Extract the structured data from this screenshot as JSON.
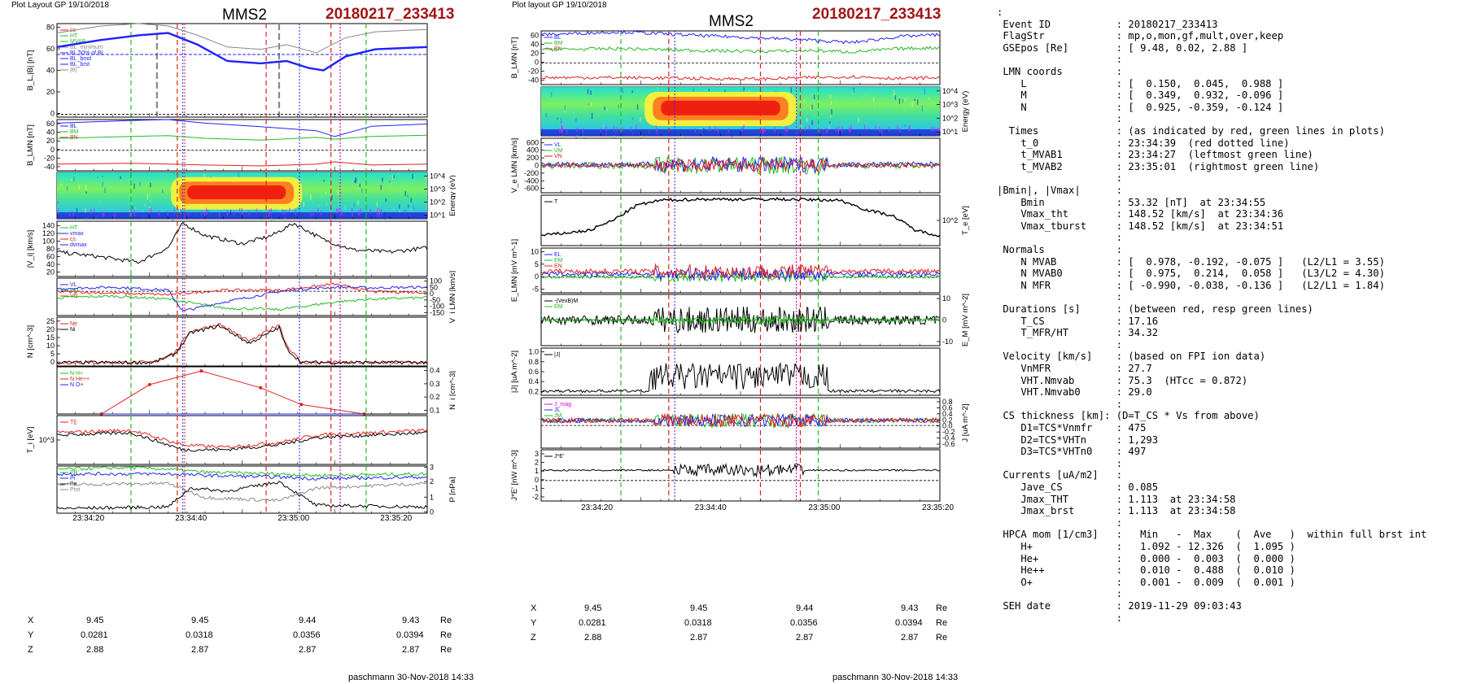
{
  "left_panel": {
    "header": "Plot Layout GP 19/10/2018",
    "spacecraft": "MMS2",
    "event": "20180217_233413",
    "footer": "paschmann 30-Nov-2018 14:33"
  },
  "right_panel": {
    "header": "Plot layout GP 19/10/2018",
    "spacecraft": "MMS2",
    "event": "20180217_233413",
    "footer": "paschmann 30-Nov-2018 14:33"
  },
  "time_ticks": [
    "23:34:20",
    "23:34:40",
    "23:35:00",
    "23:35:20"
  ],
  "position_rows": [
    {
      "label": "X",
      "values": [
        "9.45",
        "9.45",
        "9.44",
        "9.43"
      ],
      "unit": "Re"
    },
    {
      "label": "Y",
      "values": [
        "0.0281",
        "0.0318",
        "0.0356",
        "0.0394"
      ],
      "unit": "Re"
    },
    {
      "label": "Z",
      "values": [
        "2.88",
        "2.87",
        "2.87",
        "2.87"
      ],
      "unit": "Re"
    }
  ],
  "colors": {
    "blue": "#2020ff",
    "green": "#22bb22",
    "red": "#e02020",
    "black": "#000000",
    "magenta": "#e000e0",
    "title_red": "#a31515"
  },
  "chart_data": [
    {
      "type": "line",
      "panel": "left-1",
      "ylabel": "B_L,|B| [nT]",
      "yticks": [
        "80",
        "60",
        "40",
        "20",
        "0"
      ],
      "ylim": [
        0,
        80
      ],
      "legend": [
        "cs",
        "HT",
        "MVAB",
        "BL_minimum",
        "BL 50% of BL",
        "BL_bmd",
        "BL_brst",
        "|B|"
      ],
      "series": [
        {
          "name": "|B|",
          "color": "#888888",
          "x": [
            0,
            12,
            22,
            30,
            38,
            46,
            55,
            62,
            70,
            78,
            86,
            100
          ],
          "y": [
            72,
            78,
            80,
            78,
            70,
            60,
            58,
            62,
            55,
            68,
            73,
            75
          ]
        },
        {
          "name": "BL_brst",
          "color": "#2020ff",
          "x": [
            0,
            12,
            22,
            30,
            38,
            46,
            55,
            62,
            68,
            72,
            78,
            86,
            100
          ],
          "y": [
            60,
            66,
            70,
            72,
            62,
            48,
            46,
            48,
            42,
            40,
            52,
            58,
            60
          ]
        }
      ]
    },
    {
      "type": "line",
      "panel": "left-2",
      "ylabel": "B_LMN [nT]",
      "yticks": [
        "60",
        "40",
        "20",
        "0",
        "-20",
        "-40"
      ],
      "ylim": [
        -45,
        70
      ],
      "legend": [
        "BL",
        "BM",
        "BN"
      ],
      "series": [
        {
          "name": "BL",
          "color": "#2020ff",
          "x": [
            0,
            20,
            30,
            40,
            55,
            70,
            75,
            85,
            100
          ],
          "y": [
            62,
            68,
            70,
            62,
            54,
            45,
            32,
            55,
            60
          ]
        },
        {
          "name": "BM",
          "color": "#22bb22",
          "x": [
            0,
            20,
            30,
            40,
            55,
            70,
            75,
            85,
            100
          ],
          "y": [
            28,
            32,
            34,
            28,
            24,
            30,
            26,
            32,
            35
          ]
        },
        {
          "name": "BN",
          "color": "#e02020",
          "x": [
            0,
            20,
            30,
            40,
            55,
            70,
            75,
            85,
            100
          ],
          "y": [
            -30,
            -28,
            -30,
            -32,
            -34,
            -30,
            -25,
            -32,
            -30
          ]
        }
      ]
    },
    {
      "type": "heatmap",
      "panel": "left-3",
      "ylabel": "Energy (eV)",
      "yticks": [
        "10^4",
        "10^3",
        "10^2",
        "10^1"
      ]
    },
    {
      "type": "line",
      "panel": "left-4",
      "ylabel": "|V_i| [km/s]",
      "yticks": [
        "140",
        "120",
        "100",
        "80",
        "60",
        "40",
        "20"
      ],
      "ylim": [
        10,
        145
      ],
      "legend": [
        "HT",
        "vmax",
        "cs",
        "dvmax"
      ],
      "series": [
        {
          "name": "|Vi|",
          "color": "#000000",
          "x": [
            0,
            10,
            22,
            30,
            34,
            40,
            50,
            58,
            64,
            72,
            80,
            90,
            100
          ],
          "y": [
            70,
            60,
            45,
            80,
            140,
            110,
            90,
            110,
            140,
            100,
            75,
            70,
            80
          ]
        }
      ]
    },
    {
      "type": "line",
      "panel": "left-5",
      "ylabel": "V_i LMN [km/s]",
      "yticks": [
        "100",
        "50",
        "0",
        "-50",
        "-100",
        "-150"
      ],
      "ylim": [
        -150,
        100
      ],
      "legend": [
        "VL",
        "VM",
        "VN"
      ],
      "series": [
        {
          "name": "VL",
          "color": "#2020ff",
          "x": [
            0,
            15,
            30,
            34,
            45,
            60,
            68,
            76,
            85,
            100
          ],
          "y": [
            30,
            40,
            20,
            -120,
            -60,
            10,
            30,
            40,
            35,
            40
          ]
        },
        {
          "name": "VM",
          "color": "#22bb22",
          "x": [
            0,
            15,
            30,
            45,
            60,
            75,
            85,
            100
          ],
          "y": [
            -30,
            -20,
            -40,
            -100,
            -110,
            -60,
            -40,
            -30
          ]
        },
        {
          "name": "VN",
          "color": "#e02020",
          "x": [
            0,
            15,
            30,
            45,
            60,
            75,
            85,
            100
          ],
          "y": [
            10,
            0,
            -10,
            20,
            20,
            60,
            10,
            5
          ]
        }
      ]
    },
    {
      "type": "line",
      "panel": "left-6",
      "ylabel": "N [cm^-3]",
      "yticks": [
        "25",
        "20",
        "15",
        "10",
        "5",
        "0"
      ],
      "ylim": [
        0,
        28
      ],
      "legend": [
        "Ne",
        "Ni"
      ],
      "series": [
        {
          "name": "Ne",
          "color": "#e02020",
          "x": [
            0,
            26,
            32,
            36,
            44,
            52,
            60,
            62,
            66,
            100
          ],
          "y": [
            2,
            2,
            8,
            20,
            24,
            14,
            24,
            12,
            2,
            2
          ]
        },
        {
          "name": "Ni",
          "color": "#000000",
          "x": [
            0,
            26,
            32,
            36,
            44,
            52,
            60,
            62,
            66,
            100
          ],
          "y": [
            2,
            2,
            7,
            19,
            23,
            13,
            22,
            10,
            2,
            2
          ]
        }
      ]
    },
    {
      "type": "line",
      "panel": "left-7",
      "ylabel": "N_i [cm^-3]",
      "yticks": [
        "0.4",
        "0.3",
        "0.2",
        "0.1"
      ],
      "ylim": [
        0,
        0.45
      ],
      "legend": [
        "N H+",
        "N He++",
        "N O+"
      ],
      "series": [
        {
          "name": "N He++",
          "color": "#e02020",
          "x": [
            12,
            25,
            39,
            55,
            66,
            83
          ],
          "y": [
            0.0,
            0.28,
            0.41,
            0.25,
            0.09,
            0.0
          ]
        },
        {
          "name": "N H+",
          "color": "#000000",
          "x": [
            12,
            83
          ],
          "y": [
            0.0,
            0.0
          ]
        },
        {
          "name": "N O+",
          "color": "#2020ff",
          "x": [
            12,
            83
          ],
          "y": [
            0.0,
            0.0
          ]
        }
      ]
    },
    {
      "type": "line",
      "panel": "left-8",
      "ylabel": "T_i [eV]",
      "yticks": [
        "10^3"
      ],
      "legend": [
        "T||"
      ],
      "series": [
        {
          "name": "T||",
          "color": "#e02020",
          "x": [
            0,
            20,
            34,
            45,
            60,
            70,
            85,
            100
          ],
          "y": [
            0.65,
            0.7,
            0.4,
            0.35,
            0.45,
            0.6,
            0.65,
            0.7
          ]
        },
        {
          "name": "Tperp",
          "color": "#000000",
          "x": [
            0,
            20,
            34,
            45,
            60,
            70,
            85,
            100
          ],
          "y": [
            0.6,
            0.65,
            0.3,
            0.3,
            0.4,
            0.55,
            0.6,
            0.65
          ]
        }
      ]
    },
    {
      "type": "line",
      "panel": "left-9",
      "ylabel": "P [nPa]",
      "yticks": [
        "3",
        "2",
        "1",
        "0"
      ],
      "ylim": [
        0,
        3
      ],
      "legend": [
        "PB",
        "Pi",
        "Pe",
        "Ptot"
      ],
      "series": [
        {
          "name": "Ptot",
          "color": "#22bb22",
          "x": [
            0,
            20,
            30,
            40,
            60,
            70,
            100
          ],
          "y": [
            2.8,
            2.9,
            2.8,
            2.6,
            2.5,
            2.4,
            2.5
          ]
        },
        {
          "name": "PB",
          "color": "#2020ff",
          "x": [
            0,
            30,
            40,
            60,
            70,
            100
          ],
          "y": [
            2.5,
            2.5,
            2.4,
            2.3,
            2.2,
            2.3
          ]
        },
        {
          "name": "Pi",
          "color": "#000000",
          "x": [
            0,
            30,
            36,
            46,
            60,
            70,
            100
          ],
          "y": [
            0.3,
            0.4,
            1.6,
            1.4,
            2.0,
            0.5,
            0.4
          ]
        },
        {
          "name": "Pe",
          "color": "#888888",
          "x": [
            0,
            30,
            40,
            60,
            70,
            100
          ],
          "y": [
            1.8,
            1.9,
            1.0,
            0.8,
            1.6,
            1.9
          ]
        }
      ]
    },
    {
      "type": "line",
      "panel": "right-1",
      "ylabel": "B_LMN [nT]",
      "yticks": [
        "60",
        "40",
        "20",
        "0",
        "-20",
        "-40"
      ],
      "ylim": [
        -45,
        70
      ],
      "legend": [
        "BL",
        "BM",
        "BN"
      ],
      "series": [
        {
          "name": "BL",
          "color": "#2020ff",
          "x": [
            0,
            20,
            40,
            55,
            68,
            78,
            90,
            100
          ],
          "y": [
            62,
            68,
            60,
            55,
            50,
            45,
            58,
            62
          ]
        },
        {
          "name": "BM",
          "color": "#22bb22",
          "x": [
            0,
            20,
            40,
            55,
            68,
            78,
            90,
            100
          ],
          "y": [
            30,
            32,
            28,
            26,
            28,
            25,
            32,
            34
          ]
        },
        {
          "name": "BN",
          "color": "#e02020",
          "x": [
            0,
            20,
            40,
            55,
            68,
            78,
            90,
            100
          ],
          "y": [
            -30,
            -30,
            -32,
            -33,
            -30,
            -28,
            -32,
            -30
          ]
        }
      ]
    },
    {
      "type": "heatmap",
      "panel": "right-2",
      "ylabel": "Energy (eV)",
      "yticks": [
        "10^4",
        "10^3",
        "10^2",
        "10^1"
      ]
    },
    {
      "type": "line",
      "panel": "right-3",
      "ylabel": "V_e LMN [km/s]",
      "yticks": [
        "600",
        "400",
        "200",
        "0",
        "-200",
        "-400",
        "-600"
      ],
      "ylim": [
        -650,
        650
      ],
      "legend": [
        "VL",
        "VM",
        "VN"
      ]
    },
    {
      "type": "line",
      "panel": "right-4",
      "ylabel": "T_e [eV]",
      "yticks": [
        "10^2"
      ],
      "legend": [
        "T"
      ],
      "series": [
        {
          "name": "Te",
          "color": "#000000",
          "x": [
            0,
            12,
            18,
            24,
            30,
            40,
            60,
            75,
            82,
            88,
            94,
            100
          ],
          "y": [
            0.2,
            0.3,
            0.5,
            0.8,
            0.9,
            0.92,
            0.92,
            0.9,
            0.7,
            0.6,
            0.3,
            0.2
          ]
        }
      ]
    },
    {
      "type": "line",
      "panel": "right-5",
      "ylabel": "E_LMN [mV m^-1]",
      "yticks": [
        "10",
        "5",
        "0",
        "-5"
      ],
      "ylim": [
        -7,
        12
      ],
      "legend": [
        "EL",
        "EM",
        "EN"
      ]
    },
    {
      "type": "line",
      "panel": "right-6",
      "ylabel": "E_M [mV m^-2]",
      "yticks": [
        "10",
        "0",
        "-10"
      ],
      "ylim": [
        -13,
        13
      ],
      "legend": [
        "-(VexB)M",
        "EM"
      ]
    },
    {
      "type": "line",
      "panel": "right-7",
      "ylabel": "|J| [uA m^-2]",
      "yticks": [
        "1.0",
        "0.8",
        "0.6",
        "0.4",
        "0.2"
      ],
      "ylim": [
        0,
        1.1
      ],
      "legend": [
        "|J|"
      ]
    },
    {
      "type": "line",
      "panel": "right-8",
      "ylabel": "J [uA m^-2]",
      "yticks": [
        "0.8",
        "0.6",
        "0.4",
        "0.2",
        "0.0",
        "-0.2",
        "-0.4",
        "-0.6"
      ],
      "ylim": [
        -0.7,
        0.85
      ],
      "legend": [
        "J_mag",
        "JL",
        "JM",
        "JN"
      ]
    },
    {
      "type": "line",
      "panel": "right-9",
      "ylabel": "J*E' [nW m^-3]",
      "yticks": [
        "3",
        "2",
        "1",
        "0",
        "-1",
        "-2"
      ],
      "ylim": [
        -2.2,
        3.2
      ],
      "legend": [
        "J*E'"
      ]
    }
  ],
  "info_lines": [
    ":",
    " Event ID           : 20180217_233413",
    " FlagStr            : mp,o,mon,gf,mult,over,keep",
    " GSEpos [Re]        : [ 9.48, 0.02, 2.88 ]",
    "                    :",
    " LMN coords         :",
    "    L               : [  0.150,  0.045,  0.988 ]",
    "    M               : [  0.349,  0.932, -0.096 ]",
    "    N               : [  0.925, -0.359, -0.124 ]",
    "                    :",
    "  Times             : (as indicated by red, green lines in plots)",
    "    t_0             : 23:34:39  (red dotted line)",
    "    t_MVAB1         : 23:34:27  (leftmost green line)",
    "    t_MVAB2         : 23:35:01  (rightmost green line)",
    "                    :",
    "|Bmin|, |Vmax|      :",
    "    Bmin            : 53.32 [nT]  at 23:34:55",
    "    Vmax_tht        : 148.52 [km/s]  at 23:34:36",
    "    Vmax_tburst     : 148.52 [km/s]  at 23:34:51",
    "                    :",
    " Normals            :",
    "    N MVAB          : [  0.978, -0.192, -0.075 ]   (L2/L1 = 3.55)",
    "    N MVAB0         : [  0.975,  0.214,  0.058 ]   (L3/L2 = 4.30)",
    "    N MFR           : [ -0.990, -0.038, -0.136 ]   (L2/L1 = 1.84)",
    "                    :",
    " Durations [s]      : (between red, resp green lines)",
    "    T_CS            : 17.16",
    "    T_MFR/HT        : 34.32",
    "                    :",
    " Velocity [km/s]    : (based on FPI ion data)",
    "    VnMFR           : 27.7",
    "    VHT.Nmvab       : 75.3  (HTcc = 0.872)",
    "    VHT.Nmvab0      : 29.0",
    "                    :",
    " CS thickness [km]: (D=T_CS * Vs from above)",
    "    D1=TCS*Vnmfr    : 475",
    "    D2=TCS*VHTn     : 1,293",
    "    D3=TCS*VHTn0    : 497",
    "                    :",
    " Currents [uA/m2]   :",
    "    Jave_CS         : 0.085",
    "    Jmax_THT        : 1.113  at 23:34:58",
    "    Jmax_brst       : 1.113  at 23:34:58",
    "                    :",
    " HPCA mom [1/cm3]   :   Min   -  Max    (  Ave   )  within full brst int",
    "    H+              :   1.092 - 12.326  (  1.095 )",
    "    He+             :   0.000 -  0.003  (  0.000 )",
    "    He++            :   0.010 -  0.488  (  0.010 )",
    "    O+              :   0.001 -  0.009  (  0.001 )",
    "                    :",
    " SEH date           : 2019-11-29 09:03:43",
    "                    :"
  ]
}
